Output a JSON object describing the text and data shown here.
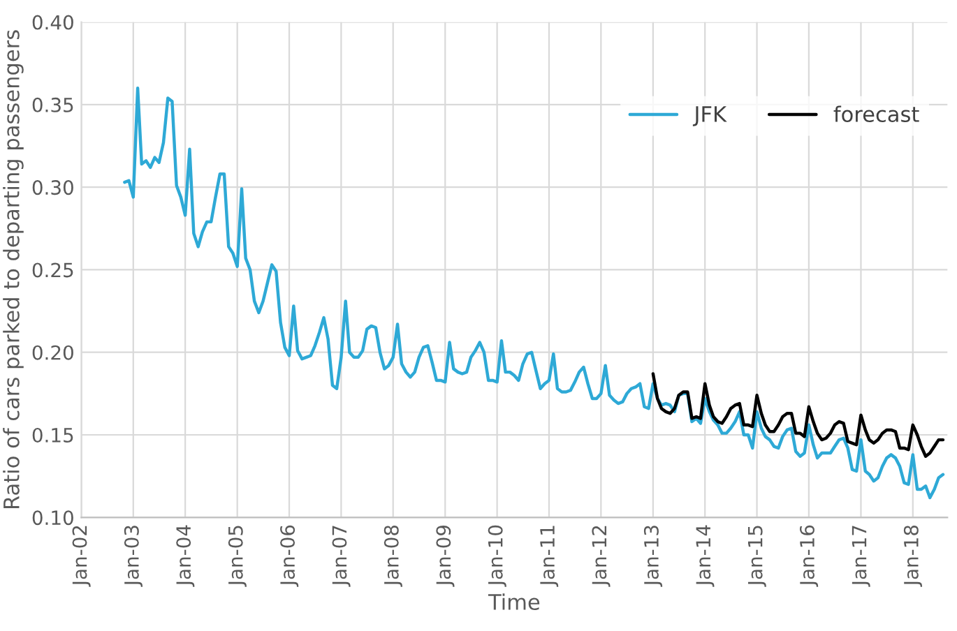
{
  "chart_data": {
    "type": "line",
    "xlabel": "Time",
    "ylabel": "Ratio of cars parked to departing passengers",
    "xlim": [
      "2002-01",
      "2018-09"
    ],
    "xticks": [
      {
        "value": "2002-01",
        "label": "Jan-02"
      },
      {
        "value": "2003-01",
        "label": "Jan-03"
      },
      {
        "value": "2004-01",
        "label": "Jan-04"
      },
      {
        "value": "2005-01",
        "label": "Jan-05"
      },
      {
        "value": "2006-01",
        "label": "Jan-06"
      },
      {
        "value": "2007-01",
        "label": "Jan-07"
      },
      {
        "value": "2008-01",
        "label": "Jan-08"
      },
      {
        "value": "2009-01",
        "label": "Jan-09"
      },
      {
        "value": "2010-01",
        "label": "Jan-10"
      },
      {
        "value": "2011-01",
        "label": "Jan-11"
      },
      {
        "value": "2012-01",
        "label": "Jan-12"
      },
      {
        "value": "2013-01",
        "label": "Jan-13"
      },
      {
        "value": "2014-01",
        "label": "Jan-14"
      },
      {
        "value": "2015-01",
        "label": "Jan-15"
      },
      {
        "value": "2016-01",
        "label": "Jan-16"
      },
      {
        "value": "2017-01",
        "label": "Jan-17"
      },
      {
        "value": "2018-01",
        "label": "Jan-18"
      }
    ],
    "ylim": [
      0.1,
      0.4
    ],
    "yticks": [
      {
        "value": 0.1,
        "label": "0.10"
      },
      {
        "value": 0.15,
        "label": "0.15"
      },
      {
        "value": 0.2,
        "label": "0.20"
      },
      {
        "value": 0.25,
        "label": "0.25"
      },
      {
        "value": 0.3,
        "label": "0.30"
      },
      {
        "value": 0.35,
        "label": "0.35"
      },
      {
        "value": 0.4,
        "label": "0.40"
      }
    ],
    "grid": true,
    "legend": "top right",
    "series": [
      {
        "name": "JFK",
        "color": "#2ea9d6",
        "x": [
          "2002-11",
          "2002-12",
          "2003-01",
          "2003-02",
          "2003-03",
          "2003-04",
          "2003-05",
          "2003-06",
          "2003-07",
          "2003-08",
          "2003-09",
          "2003-10",
          "2003-11",
          "2003-12",
          "2004-01",
          "2004-02",
          "2004-03",
          "2004-04",
          "2004-05",
          "2004-06",
          "2004-07",
          "2004-08",
          "2004-09",
          "2004-10",
          "2004-11",
          "2004-12",
          "2005-01",
          "2005-02",
          "2005-03",
          "2005-04",
          "2005-05",
          "2005-06",
          "2005-07",
          "2005-08",
          "2005-09",
          "2005-10",
          "2005-11",
          "2005-12",
          "2006-01",
          "2006-02",
          "2006-03",
          "2006-04",
          "2006-05",
          "2006-06",
          "2006-07",
          "2006-08",
          "2006-09",
          "2006-10",
          "2006-11",
          "2006-12",
          "2007-01",
          "2007-02",
          "2007-03",
          "2007-04",
          "2007-05",
          "2007-06",
          "2007-07",
          "2007-08",
          "2007-09",
          "2007-10",
          "2007-11",
          "2007-12",
          "2008-01",
          "2008-02",
          "2008-03",
          "2008-04",
          "2008-05",
          "2008-06",
          "2008-07",
          "2008-08",
          "2008-09",
          "2008-10",
          "2008-11",
          "2008-12",
          "2009-01",
          "2009-02",
          "2009-03",
          "2009-04",
          "2009-05",
          "2009-06",
          "2009-07",
          "2009-08",
          "2009-09",
          "2009-10",
          "2009-11",
          "2009-12",
          "2010-01",
          "2010-02",
          "2010-03",
          "2010-04",
          "2010-05",
          "2010-06",
          "2010-07",
          "2010-08",
          "2010-09",
          "2010-10",
          "2010-11",
          "2010-12",
          "2011-01",
          "2011-02",
          "2011-03",
          "2011-04",
          "2011-05",
          "2011-06",
          "2011-07",
          "2011-08",
          "2011-09",
          "2011-10",
          "2011-11",
          "2011-12",
          "2012-01",
          "2012-02",
          "2012-03",
          "2012-04",
          "2012-05",
          "2012-06",
          "2012-07",
          "2012-08",
          "2012-09",
          "2012-10",
          "2012-11",
          "2012-12",
          "2013-01",
          "2013-02",
          "2013-03",
          "2013-04",
          "2013-05",
          "2013-06",
          "2013-07",
          "2013-08",
          "2013-09",
          "2013-10",
          "2013-11",
          "2013-12",
          "2014-01",
          "2014-02",
          "2014-03",
          "2014-04",
          "2014-05",
          "2014-06",
          "2014-07",
          "2014-08",
          "2014-09",
          "2014-10",
          "2014-11",
          "2014-12",
          "2015-01",
          "2015-02",
          "2015-03",
          "2015-04",
          "2015-05",
          "2015-06",
          "2015-07",
          "2015-08",
          "2015-09",
          "2015-10",
          "2015-11",
          "2015-12",
          "2016-01",
          "2016-02",
          "2016-03",
          "2016-04",
          "2016-05",
          "2016-06",
          "2016-07",
          "2016-08",
          "2016-09",
          "2016-10",
          "2016-11",
          "2016-12",
          "2017-01",
          "2017-02",
          "2017-03",
          "2017-04",
          "2017-05",
          "2017-06",
          "2017-07",
          "2017-08",
          "2017-09",
          "2017-10",
          "2017-11",
          "2017-12",
          "2018-01",
          "2018-02",
          "2018-03",
          "2018-04",
          "2018-05",
          "2018-06",
          "2018-07",
          "2018-08"
        ],
        "values": [
          0.303,
          0.304,
          0.294,
          0.36,
          0.314,
          0.316,
          0.312,
          0.318,
          0.315,
          0.327,
          0.354,
          0.352,
          0.301,
          0.294,
          0.283,
          0.323,
          0.272,
          0.264,
          0.273,
          0.279,
          0.279,
          0.294,
          0.308,
          0.308,
          0.264,
          0.26,
          0.252,
          0.299,
          0.257,
          0.25,
          0.231,
          0.224,
          0.231,
          0.242,
          0.253,
          0.249,
          0.218,
          0.203,
          0.198,
          0.228,
          0.201,
          0.196,
          0.197,
          0.198,
          0.204,
          0.212,
          0.221,
          0.208,
          0.18,
          0.178,
          0.197,
          0.231,
          0.2,
          0.197,
          0.197,
          0.201,
          0.214,
          0.216,
          0.215,
          0.2,
          0.19,
          0.192,
          0.197,
          0.217,
          0.193,
          0.188,
          0.185,
          0.188,
          0.197,
          0.203,
          0.204,
          0.194,
          0.183,
          0.183,
          0.182,
          0.206,
          0.19,
          0.188,
          0.187,
          0.188,
          0.197,
          0.201,
          0.206,
          0.2,
          0.183,
          0.183,
          0.182,
          0.207,
          0.188,
          0.188,
          0.186,
          0.183,
          0.193,
          0.199,
          0.2,
          0.189,
          0.178,
          0.181,
          0.183,
          0.199,
          0.178,
          0.176,
          0.176,
          0.177,
          0.182,
          0.188,
          0.191,
          0.181,
          0.172,
          0.172,
          0.175,
          0.192,
          0.174,
          0.171,
          0.169,
          0.17,
          0.175,
          0.178,
          0.179,
          0.181,
          0.167,
          0.166,
          0.181,
          0.172,
          0.168,
          0.169,
          0.168,
          0.164,
          0.174,
          0.175,
          0.175,
          0.158,
          0.16,
          0.157,
          0.172,
          0.164,
          0.159,
          0.156,
          0.151,
          0.151,
          0.154,
          0.158,
          0.164,
          0.15,
          0.15,
          0.142,
          0.164,
          0.154,
          0.149,
          0.147,
          0.143,
          0.142,
          0.149,
          0.153,
          0.154,
          0.14,
          0.137,
          0.139,
          0.156,
          0.144,
          0.136,
          0.139,
          0.139,
          0.139,
          0.143,
          0.147,
          0.148,
          0.142,
          0.129,
          0.128,
          0.147,
          0.128,
          0.126,
          0.122,
          0.124,
          0.131,
          0.136,
          0.138,
          0.136,
          0.131,
          0.121,
          0.12,
          0.138,
          0.117,
          0.117,
          0.119,
          0.112,
          0.117,
          0.124,
          0.126
        ]
      },
      {
        "name": "forecast",
        "color": "#000000",
        "x": [
          "2013-01",
          "2013-02",
          "2013-03",
          "2013-04",
          "2013-05",
          "2013-06",
          "2013-07",
          "2013-08",
          "2013-09",
          "2013-10",
          "2013-11",
          "2013-12",
          "2014-01",
          "2014-02",
          "2014-03",
          "2014-04",
          "2014-05",
          "2014-06",
          "2014-07",
          "2014-08",
          "2014-09",
          "2014-10",
          "2014-11",
          "2014-12",
          "2015-01",
          "2015-02",
          "2015-03",
          "2015-04",
          "2015-05",
          "2015-06",
          "2015-07",
          "2015-08",
          "2015-09",
          "2015-10",
          "2015-11",
          "2015-12",
          "2016-01",
          "2016-02",
          "2016-03",
          "2016-04",
          "2016-05",
          "2016-06",
          "2016-07",
          "2016-08",
          "2016-09",
          "2016-10",
          "2016-11",
          "2016-12",
          "2017-01",
          "2017-02",
          "2017-03",
          "2017-04",
          "2017-05",
          "2017-06",
          "2017-07",
          "2017-08",
          "2017-09",
          "2017-10",
          "2017-11",
          "2017-12",
          "2018-01",
          "2018-02",
          "2018-03",
          "2018-04",
          "2018-05",
          "2018-06",
          "2018-07",
          "2018-08"
        ],
        "values": [
          0.187,
          0.172,
          0.166,
          0.164,
          0.163,
          0.166,
          0.174,
          0.176,
          0.176,
          0.16,
          0.161,
          0.16,
          0.181,
          0.168,
          0.161,
          0.158,
          0.157,
          0.161,
          0.166,
          0.168,
          0.169,
          0.156,
          0.156,
          0.155,
          0.174,
          0.163,
          0.156,
          0.152,
          0.152,
          0.156,
          0.161,
          0.163,
          0.163,
          0.151,
          0.151,
          0.149,
          0.167,
          0.158,
          0.151,
          0.147,
          0.148,
          0.151,
          0.156,
          0.158,
          0.157,
          0.146,
          0.145,
          0.144,
          0.162,
          0.153,
          0.147,
          0.145,
          0.147,
          0.151,
          0.153,
          0.153,
          0.152,
          0.142,
          0.142,
          0.141,
          0.156,
          0.15,
          0.143,
          0.137,
          0.139,
          0.143,
          0.147,
          0.147
        ]
      }
    ]
  }
}
